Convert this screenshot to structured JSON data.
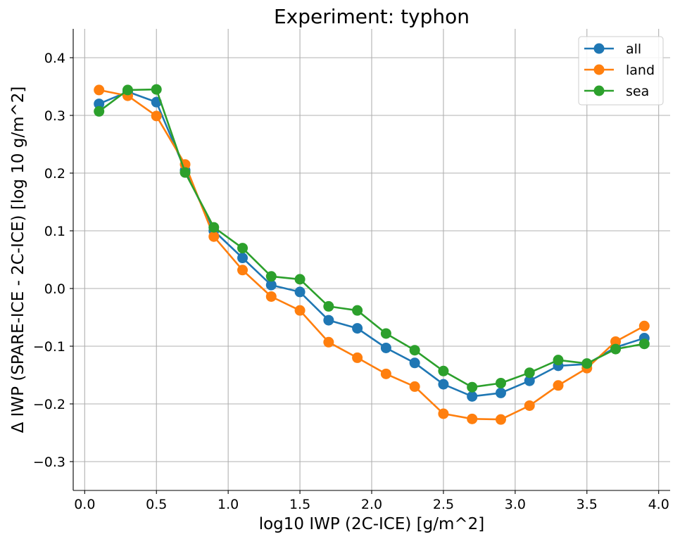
{
  "chart_data": {
    "type": "line",
    "title": "Experiment: typhon",
    "xlabel": "log10 IWP (2C-ICE) [g/m^2]",
    "ylabel": "Δ IWP (SPARE-ICE - 2C-ICE) [log 10 g/m^2]",
    "xlim": [
      -0.08,
      4.08
    ],
    "ylim": [
      -0.35,
      0.45
    ],
    "xticks": [
      0.0,
      0.5,
      1.0,
      1.5,
      2.0,
      2.5,
      3.0,
      3.5,
      4.0
    ],
    "xtick_labels": [
      "0.0",
      "0.5",
      "1.0",
      "1.5",
      "2.0",
      "2.5",
      "3.0",
      "3.5",
      "4.0"
    ],
    "yticks": [
      -0.3,
      -0.2,
      -0.1,
      0.0,
      0.1,
      0.2,
      0.3,
      0.4
    ],
    "ytick_labels": [
      "−0.3",
      "−0.2",
      "−0.1",
      "0.0",
      "0.1",
      "0.2",
      "0.3",
      "0.4"
    ],
    "grid": true,
    "legend_position": "top-right",
    "x": [
      0.1,
      0.3,
      0.5,
      0.7,
      0.9,
      1.1,
      1.3,
      1.5,
      1.7,
      1.9,
      2.1,
      2.3,
      2.5,
      2.7,
      2.9,
      3.1,
      3.3,
      3.5,
      3.7,
      3.9
    ],
    "series": [
      {
        "name": "all",
        "color": "#1f77b4",
        "values": [
          0.32,
          0.341,
          0.323,
          0.205,
          0.1,
          0.053,
          0.006,
          -0.006,
          -0.055,
          -0.069,
          -0.103,
          -0.129,
          -0.166,
          -0.187,
          -0.181,
          -0.16,
          -0.134,
          -0.131,
          -0.102,
          -0.086
        ]
      },
      {
        "name": "land",
        "color": "#ff7f0e",
        "values": [
          0.344,
          0.334,
          0.299,
          0.215,
          0.09,
          0.032,
          -0.014,
          -0.038,
          -0.093,
          -0.12,
          -0.148,
          -0.17,
          -0.217,
          -0.226,
          -0.227,
          -0.203,
          -0.168,
          -0.138,
          -0.092,
          -0.065
        ]
      },
      {
        "name": "sea",
        "color": "#2ca02c",
        "values": [
          0.307,
          0.344,
          0.345,
          0.201,
          0.106,
          0.07,
          0.021,
          0.016,
          -0.031,
          -0.038,
          -0.078,
          -0.107,
          -0.143,
          -0.171,
          -0.164,
          -0.146,
          -0.124,
          -0.13,
          -0.105,
          -0.096
        ]
      }
    ]
  }
}
